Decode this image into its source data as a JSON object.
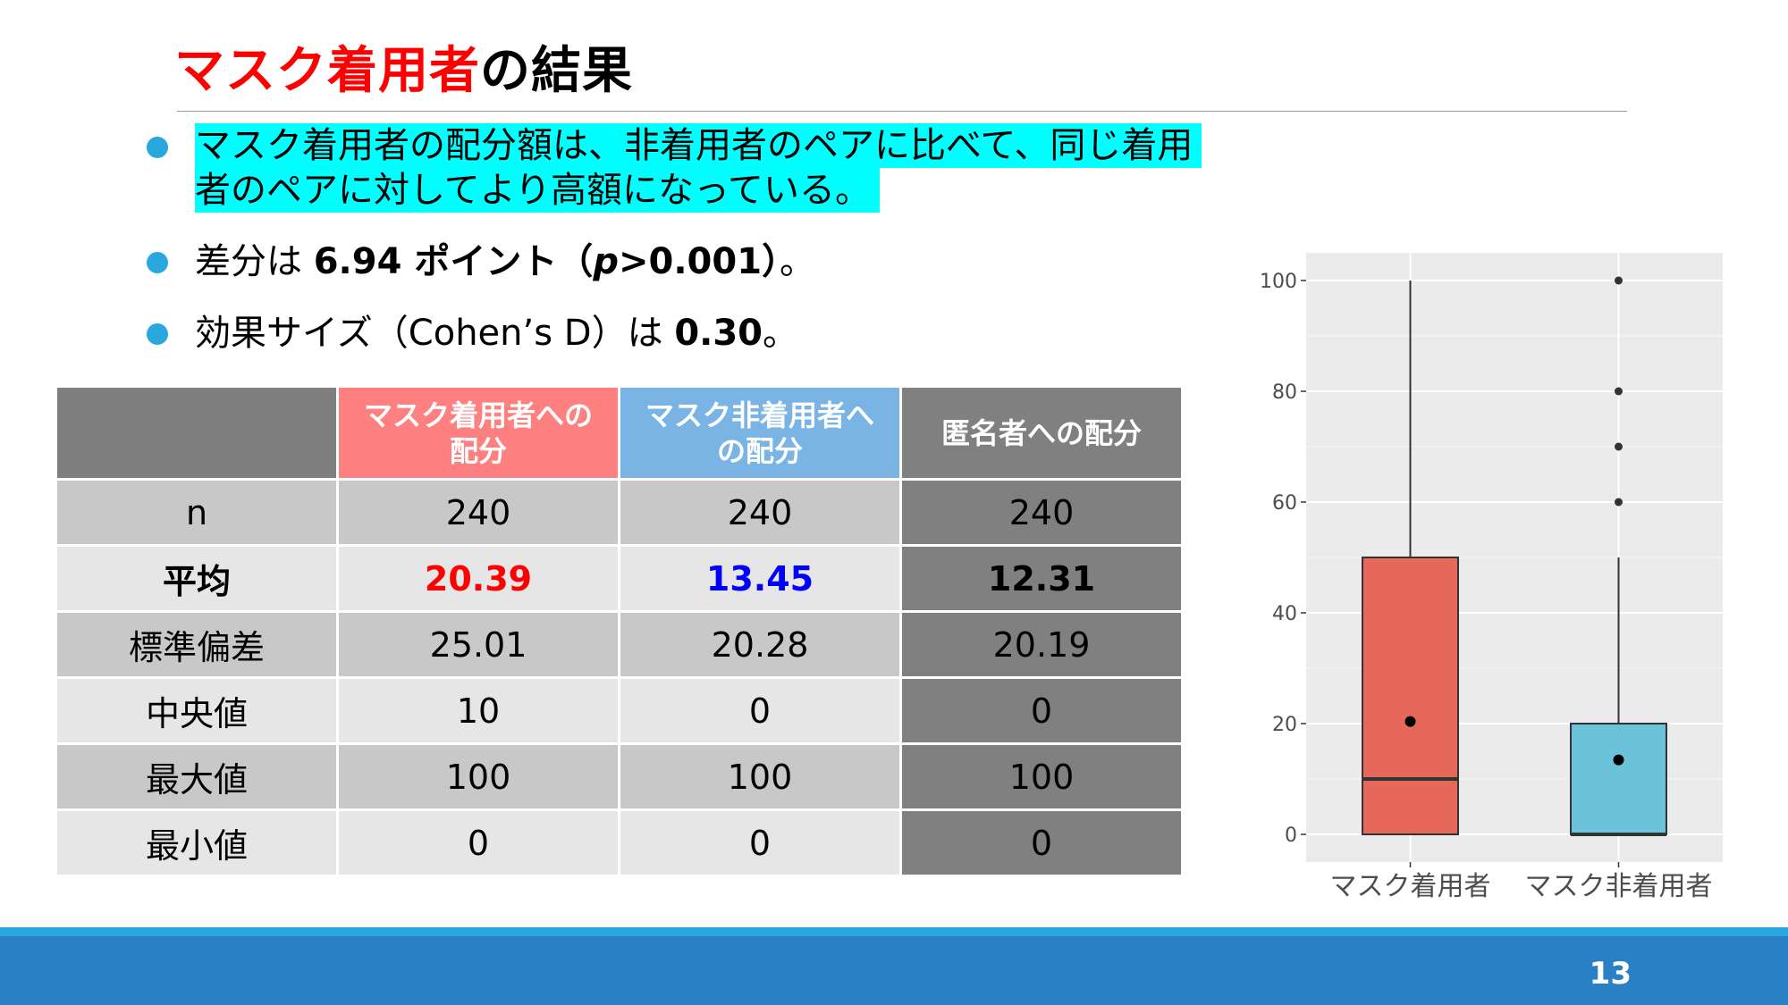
{
  "title": {
    "highlight": "マスク着用者",
    "rest": "の結果"
  },
  "bullets": {
    "b1_line1": "マスク着用者の配分額は、非着用者のペアに比べて、同じ着用",
    "b1_line2": "者のペアに対してより高額になっている。",
    "b2_prefix": "差分は",
    "b2_bold1": "6.94 ポイント（",
    "b2_italic": "p",
    "b2_bold2": ">0.001）",
    "b2_suffix": "。",
    "b3_prefix": "効果サイズ（Cohen’s D）は",
    "b3_bold": "0.30",
    "b3_suffix": "。"
  },
  "table": {
    "headers": [
      "",
      "マスク着用者への配分",
      "マスク非着用者への配分",
      "匿名者への配分"
    ],
    "header_lines": {
      "mask": [
        "マスク着用者への",
        "配分"
      ],
      "nonmask": [
        "マスク非着用者へ",
        "の配分"
      ],
      "anon": [
        "匿名者への配分"
      ]
    },
    "rows": [
      {
        "label": "n",
        "values": [
          "240",
          "240",
          "240"
        ]
      },
      {
        "label": "平均",
        "values": [
          "20.39",
          "13.45",
          "12.31"
        ]
      },
      {
        "label": "標準偏差",
        "values": [
          "25.01",
          "20.28",
          "20.19"
        ]
      },
      {
        "label": "中央値",
        "values": [
          "10",
          "0",
          "0"
        ]
      },
      {
        "label": "最大値",
        "values": [
          "100",
          "100",
          "100"
        ]
      },
      {
        "label": "最小値",
        "values": [
          "0",
          "0",
          "0"
        ]
      }
    ]
  },
  "chart_data": {
    "type": "box",
    "categories": [
      "マスク着用者",
      "マスク非着用者"
    ],
    "ylim": [
      0,
      100
    ],
    "yticks": [
      "0",
      "20",
      "40",
      "60",
      "80",
      "100"
    ],
    "grid": true,
    "series": [
      {
        "category": "マスク着用者",
        "min": 0,
        "q1": 0,
        "median": 10,
        "q3": 50,
        "max": 100,
        "mean": 20.39,
        "outliers": [],
        "color": "#e5685b"
      },
      {
        "category": "マスク非着用者",
        "min": 0,
        "q1": 0,
        "median": 0,
        "q3": 20,
        "max": 50,
        "mean": 13.45,
        "outliers": [
          60,
          70,
          80,
          100
        ],
        "color": "#6ac3d9"
      }
    ]
  },
  "footer": {
    "page_number": "13"
  },
  "colors": {
    "title_red": "#ff0000",
    "bullet_blue": "#29a8e0",
    "highlight_cyan": "#00ffff",
    "footer_blue": "#2a80c4"
  }
}
